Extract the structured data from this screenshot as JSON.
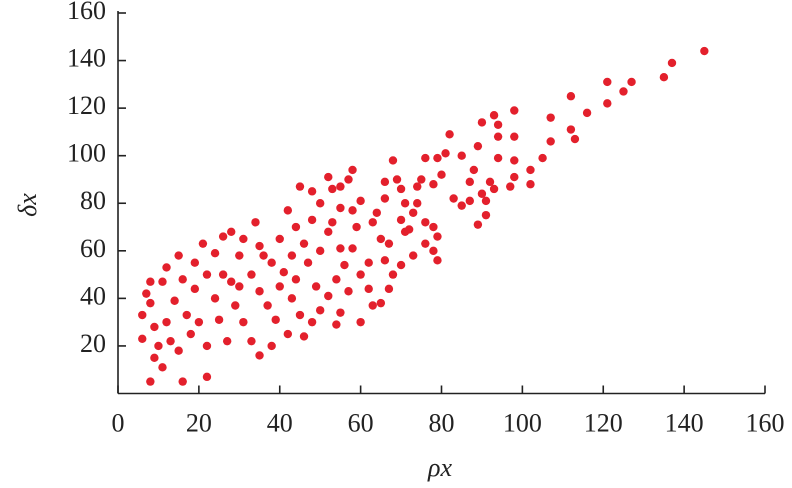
{
  "chart_data": {
    "type": "scatter",
    "x_label": "ρx",
    "y_label": "δx",
    "color": "#e3202c",
    "xlim": [
      0,
      160
    ],
    "xticks": [
      0,
      20,
      40,
      60,
      80,
      100,
      120,
      140,
      160
    ],
    "ylim": [
      0,
      160
    ],
    "yticks": [
      20,
      40,
      60,
      80,
      100,
      120,
      140,
      160
    ],
    "grid": false,
    "series": [
      {
        "name": null,
        "color": "#e3202c",
        "x": [
          145,
          137,
          135,
          127,
          125,
          121,
          121,
          116,
          112,
          112,
          113,
          107,
          107,
          105,
          102,
          102,
          98,
          98,
          98,
          98,
          97,
          93,
          94,
          94,
          94,
          92,
          93,
          90,
          89,
          88,
          90,
          91,
          89,
          87,
          85,
          83,
          82,
          81,
          80,
          79,
          78,
          78,
          79,
          75,
          76,
          74,
          73,
          72,
          76,
          79,
          78,
          70,
          71,
          70,
          68,
          69,
          66,
          66,
          64,
          63,
          67,
          71,
          73,
          70,
          68,
          67,
          65,
          62,
          60,
          58,
          59,
          60,
          57,
          58,
          55,
          53,
          55,
          53,
          50,
          48,
          52,
          55,
          56,
          54,
          52,
          55,
          54,
          50,
          48,
          49,
          47,
          46,
          44,
          42,
          43,
          40,
          41,
          38,
          40,
          43,
          45,
          42,
          39,
          37,
          35,
          33,
          35,
          34,
          31,
          30,
          28,
          29,
          31,
          33,
          35,
          27,
          25,
          24,
          22,
          24,
          21,
          19,
          19,
          17,
          18,
          15,
          13,
          16,
          22,
          8,
          9,
          10,
          9,
          8,
          7,
          6,
          6,
          8,
          11,
          12,
          15,
          16,
          14,
          12,
          11,
          26,
          28,
          20,
          22,
          38,
          46,
          60,
          63,
          62,
          65,
          45,
          48,
          52,
          58,
          36,
          26,
          30,
          44,
          50,
          57,
          66,
          74,
          76,
          85,
          87,
          91
        ],
        "values": [
          144,
          139,
          133,
          131,
          127,
          131,
          122,
          118,
          125,
          111,
          107,
          116,
          106,
          99,
          94,
          88,
          119,
          108,
          98,
          91,
          87,
          117,
          113,
          108,
          99,
          89,
          86,
          114,
          104,
          94,
          84,
          75,
          71,
          81,
          79,
          82,
          109,
          101,
          92,
          99,
          88,
          70,
          66,
          90,
          99,
          87,
          76,
          69,
          63,
          56,
          60,
          86,
          80,
          73,
          98,
          90,
          89,
          82,
          76,
          72,
          63,
          68,
          58,
          54,
          50,
          44,
          38,
          44,
          50,
          61,
          70,
          81,
          90,
          94,
          87,
          86,
          78,
          72,
          80,
          73,
          68,
          61,
          54,
          48,
          41,
          34,
          29,
          35,
          30,
          45,
          55,
          63,
          70,
          77,
          58,
          65,
          51,
          55,
          45,
          40,
          33,
          25,
          31,
          37,
          43,
          50,
          62,
          72,
          65,
          58,
          47,
          37,
          30,
          22,
          16,
          22,
          31,
          40,
          50,
          59,
          63,
          55,
          44,
          33,
          25,
          18,
          22,
          5,
          7,
          5,
          15,
          20,
          28,
          38,
          42,
          33,
          23,
          47,
          47,
          53,
          58,
          48,
          39,
          30,
          11,
          66,
          68,
          30,
          20,
          20,
          24,
          30,
          37,
          55,
          65,
          87,
          85,
          91,
          77,
          58,
          50,
          45,
          48,
          60,
          43,
          56,
          80,
          72,
          100,
          89,
          81
        ]
      }
    ]
  }
}
